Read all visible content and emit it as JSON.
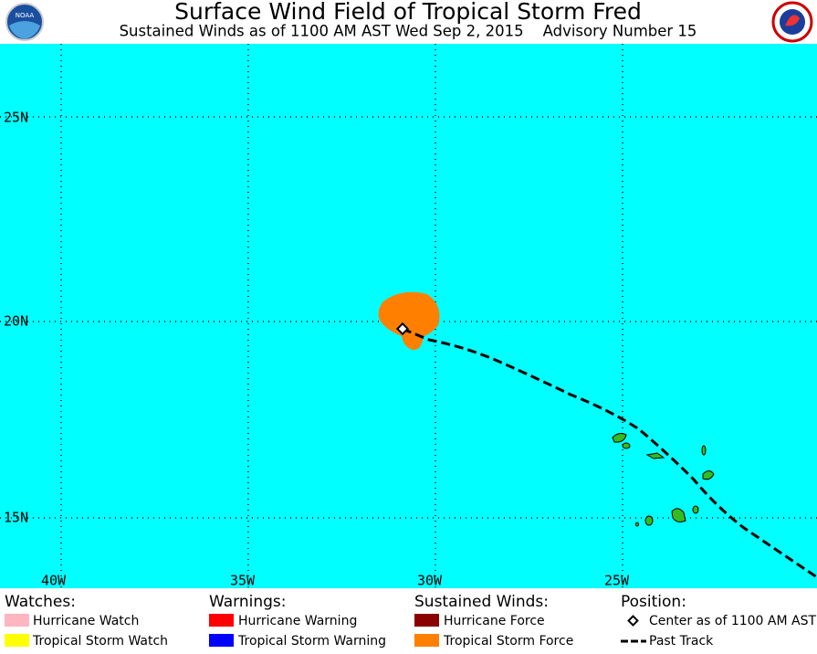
{
  "header": {
    "title": "Surface Wind Field of Tropical Storm Fred",
    "subtitle": "Sustained Winds as of 1100 AM AST Wed Sep 2, 2015    Advisory Number 15"
  },
  "map": {
    "lat_labels": [
      "25N",
      "20N",
      "15N"
    ],
    "lon_labels": [
      "40W",
      "35W",
      "30W",
      "25W"
    ]
  },
  "legend": {
    "watches": {
      "heading": "Watches:",
      "items": [
        "Hurricane Watch",
        "Tropical Storm Watch"
      ]
    },
    "warnings": {
      "heading": "Warnings:",
      "items": [
        "Hurricane Warning",
        "Tropical Storm Warning"
      ]
    },
    "winds": {
      "heading": "Sustained Winds:",
      "items": [
        "Hurricane Force",
        "Tropical Storm Force"
      ]
    },
    "position": {
      "heading": "Position:",
      "items": [
        "Center as of 1100 AM AST",
        "Past Track"
      ]
    }
  }
}
